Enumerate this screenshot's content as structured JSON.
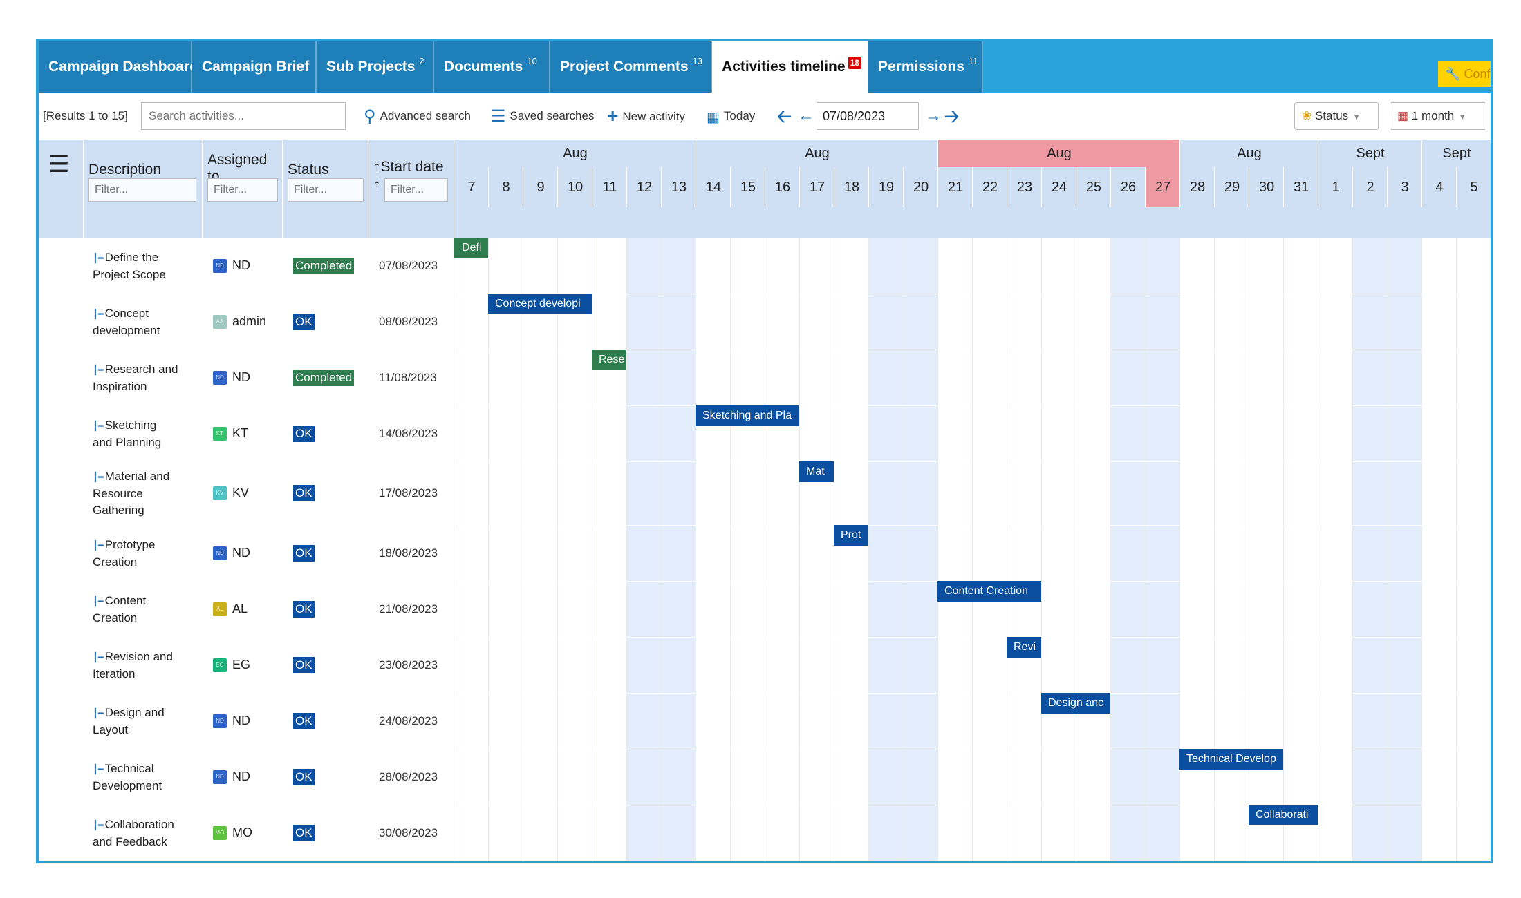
{
  "tabs": [
    {
      "label": "Campaign Dashboard",
      "count": ""
    },
    {
      "label": "Campaign Brief",
      "count": ""
    },
    {
      "label": "Sub Projects",
      "count": "2"
    },
    {
      "label": "Documents",
      "count": "10"
    },
    {
      "label": "Project Comments",
      "count": "13"
    },
    {
      "label": "Activities timeline",
      "count": "18"
    },
    {
      "label": "Permissions",
      "count": "11"
    }
  ],
  "config_label": "Confi",
  "toolbar": {
    "results": "[Results 1 to 15]",
    "search_placeholder": "Search activities...",
    "advanced_search": "Advanced search",
    "saved_searches": "Saved searches",
    "new_activity": "New activity",
    "today": "Today",
    "date_value": "07/08/2023",
    "status_label": "Status",
    "range_label": "1 month"
  },
  "columns": {
    "description": "Description",
    "assigned_line1": "Assigned",
    "assigned_line2": "to",
    "status": "Status",
    "start_date": "Start date",
    "filter_placeholder": "Filter..."
  },
  "timeline": {
    "months": [
      "Aug",
      "Aug",
      "Aug",
      "Aug",
      "Sept",
      "Sept"
    ],
    "days": [
      "7",
      "8",
      "9",
      "10",
      "11",
      "12",
      "13",
      "14",
      "15",
      "16",
      "17",
      "18",
      "19",
      "20",
      "21",
      "22",
      "23",
      "24",
      "25",
      "26",
      "27",
      "28",
      "29",
      "30",
      "31",
      "1",
      "2",
      "3",
      "4",
      "5"
    ],
    "today": "27",
    "highlight_color": "#ef9aa3",
    "weekend_color": "#e4edfb"
  },
  "rows": [
    {
      "desc_l1": "Define the",
      "desc_l2": "Project Scope",
      "desc_l3": "",
      "assigned": "ND",
      "avatar_text": "ND",
      "avatar_color": "#2c63c8",
      "status": "Completed",
      "start": "07/08/2023",
      "bar": "Defi"
    },
    {
      "desc_l1": "Concept",
      "desc_l2": "development",
      "desc_l3": "",
      "assigned": "admin",
      "avatar_text": "AA",
      "avatar_color": "#9ec9c0",
      "status": "OK",
      "start": "08/08/2023",
      "bar": "Concept developi"
    },
    {
      "desc_l1": "Research and",
      "desc_l2": "Inspiration",
      "desc_l3": "",
      "assigned": "ND",
      "avatar_text": "ND",
      "avatar_color": "#2c63c8",
      "status": "Completed",
      "start": "11/08/2023",
      "bar": "Rese"
    },
    {
      "desc_l1": "Sketching",
      "desc_l2": "and Planning",
      "desc_l3": "",
      "assigned": "KT",
      "avatar_text": "KT",
      "avatar_color": "#35c26f",
      "status": "OK",
      "start": "14/08/2023",
      "bar": "Sketching and Pla"
    },
    {
      "desc_l1": "Material and",
      "desc_l2": "Resource",
      "desc_l3": "Gathering",
      "assigned": "KV",
      "avatar_text": "KV",
      "avatar_color": "#4cc2c4",
      "status": "OK",
      "start": "17/08/2023",
      "bar": "Mat"
    },
    {
      "desc_l1": "Prototype",
      "desc_l2": "Creation",
      "desc_l3": "",
      "assigned": "ND",
      "avatar_text": "ND",
      "avatar_color": "#2c63c8",
      "status": "OK",
      "start": "18/08/2023",
      "bar": "Prot"
    },
    {
      "desc_l1": "Content",
      "desc_l2": "Creation",
      "desc_l3": "",
      "assigned": "AL",
      "avatar_text": "AL",
      "avatar_color": "#c9b01a",
      "status": "OK",
      "start": "21/08/2023",
      "bar": "Content Creation"
    },
    {
      "desc_l1": "Revision and",
      "desc_l2": "Iteration",
      "desc_l3": "",
      "assigned": "EG",
      "avatar_text": "EG",
      "avatar_color": "#17b37a",
      "status": "OK",
      "start": "23/08/2023",
      "bar": "Revi"
    },
    {
      "desc_l1": "Design and",
      "desc_l2": "Layout",
      "desc_l3": "",
      "assigned": "ND",
      "avatar_text": "ND",
      "avatar_color": "#2c63c8",
      "status": "OK",
      "start": "24/08/2023",
      "bar": "Design anc"
    },
    {
      "desc_l1": "Technical",
      "desc_l2": "Development",
      "desc_l3": "",
      "assigned": "ND",
      "avatar_text": "ND",
      "avatar_color": "#2c63c8",
      "status": "OK",
      "start": "28/08/2023",
      "bar": "Technical Develop"
    },
    {
      "desc_l1": "Collaboration",
      "desc_l2": "and Feedback",
      "desc_l3": "",
      "assigned": "MO",
      "avatar_text": "MO",
      "avatar_color": "#5ec23e",
      "status": "OK",
      "start": "30/08/2023",
      "bar": "Collaborati"
    }
  ]
}
